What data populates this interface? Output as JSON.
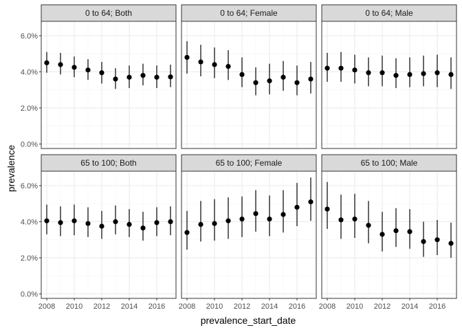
{
  "chart_data": {
    "type": "scatter",
    "layout": "facet-grid-2x3",
    "xlabel": "prevalence_start_date",
    "ylabel": "prevalence",
    "xlim": [
      2007.6,
      2017.4
    ],
    "ylim": [
      -0.0025,
      0.068
    ],
    "x_ticks": [
      2008,
      2010,
      2012,
      2014,
      2016
    ],
    "y_ticks": [
      0,
      0.02,
      0.04,
      0.06
    ],
    "y_tick_labels": [
      "0.0%",
      "2.0%",
      "4.0%",
      "6.0%"
    ],
    "grid": true,
    "colors": {
      "strip_fill": "#d9d9d9",
      "panel_border": "#333333",
      "grid_major": "#ebebeb",
      "grid_minor": "#f5f5f5",
      "marks": "#000000"
    },
    "x": [
      2008,
      2009,
      2010,
      2011,
      2012,
      2013,
      2014,
      2015,
      2016,
      2017
    ],
    "panels": [
      {
        "label": "0 to 64; Both",
        "values": [
          0.045,
          0.044,
          0.0425,
          0.041,
          0.0395,
          0.036,
          0.037,
          0.038,
          0.037,
          0.0372
        ],
        "lower": [
          0.0395,
          0.0385,
          0.037,
          0.0355,
          0.0335,
          0.0305,
          0.031,
          0.0325,
          0.031,
          0.0315
        ],
        "upper": [
          0.051,
          0.0505,
          0.0485,
          0.047,
          0.0455,
          0.042,
          0.0435,
          0.0445,
          0.0435,
          0.044
        ]
      },
      {
        "label": "0 to 64; Female",
        "values": [
          0.048,
          0.0455,
          0.044,
          0.043,
          0.0385,
          0.034,
          0.035,
          0.037,
          0.034,
          0.036
        ],
        "lower": [
          0.039,
          0.0375,
          0.0365,
          0.0355,
          0.0315,
          0.027,
          0.0275,
          0.0295,
          0.027,
          0.028
        ],
        "upper": [
          0.057,
          0.055,
          0.0535,
          0.052,
          0.048,
          0.0425,
          0.0445,
          0.046,
          0.0435,
          0.0455
        ]
      },
      {
        "label": "0 to 64; Male",
        "values": [
          0.042,
          0.042,
          0.041,
          0.0395,
          0.0395,
          0.038,
          0.0385,
          0.039,
          0.0395,
          0.0385
        ],
        "lower": [
          0.0345,
          0.0345,
          0.0335,
          0.032,
          0.032,
          0.031,
          0.0315,
          0.032,
          0.0315,
          0.0305
        ],
        "upper": [
          0.0505,
          0.051,
          0.0495,
          0.048,
          0.049,
          0.0475,
          0.048,
          0.049,
          0.0495,
          0.048
        ]
      },
      {
        "label": "65 to 100; Both",
        "values": [
          0.0405,
          0.0395,
          0.0405,
          0.039,
          0.0375,
          0.04,
          0.0385,
          0.0365,
          0.0395,
          0.04
        ],
        "lower": [
          0.033,
          0.032,
          0.0325,
          0.0315,
          0.0305,
          0.033,
          0.0315,
          0.0295,
          0.032,
          0.0325
        ],
        "upper": [
          0.0495,
          0.0485,
          0.0495,
          0.048,
          0.046,
          0.049,
          0.047,
          0.0455,
          0.048,
          0.0485
        ]
      },
      {
        "label": "65 to 100; Female",
        "values": [
          0.034,
          0.0385,
          0.039,
          0.0405,
          0.0415,
          0.0445,
          0.0415,
          0.044,
          0.048,
          0.051
        ],
        "lower": [
          0.0245,
          0.029,
          0.0295,
          0.0305,
          0.0315,
          0.0345,
          0.032,
          0.034,
          0.0375,
          0.0405
        ],
        "upper": [
          0.046,
          0.0515,
          0.0525,
          0.0535,
          0.054,
          0.0575,
          0.0545,
          0.0575,
          0.0615,
          0.0645
        ]
      },
      {
        "label": "65 to 100; Male",
        "values": [
          0.047,
          0.041,
          0.0415,
          0.038,
          0.033,
          0.035,
          0.0345,
          0.029,
          0.03,
          0.028
        ],
        "lower": [
          0.036,
          0.0305,
          0.031,
          0.028,
          0.0235,
          0.026,
          0.025,
          0.0205,
          0.0215,
          0.02
        ],
        "upper": [
          0.062,
          0.055,
          0.0555,
          0.0515,
          0.0455,
          0.0475,
          0.047,
          0.04,
          0.041,
          0.0395
        ]
      }
    ]
  }
}
